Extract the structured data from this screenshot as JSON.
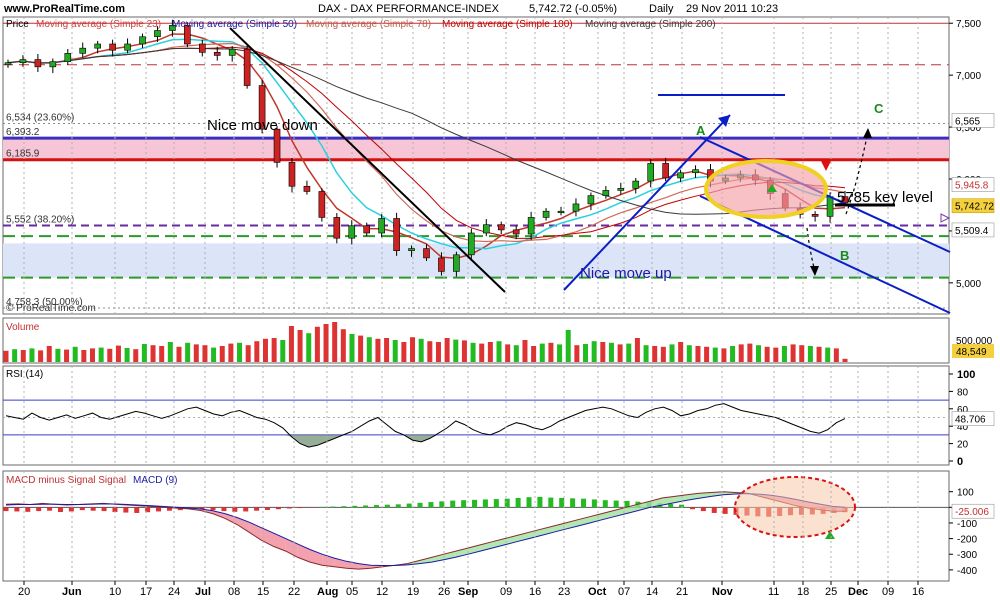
{
  "header": {
    "site": "www.ProRealTime.com",
    "symbol": "DAX - DAX PERFORMANCE-INDEX",
    "quote": "5,742.72 (-0.05%)",
    "period": "Daily",
    "datetime": "29 Nov 2011 10:23"
  },
  "legend": {
    "price": "Price",
    "ma23": "Moving average (Simple 23)",
    "ma50": "Moving average (Simple 50)",
    "ma78": "Moving average (Simple 78)",
    "ma100": "Moving average (Simple 100)",
    "ma200": "Moving average (Simple 200)"
  },
  "watermark": "© ProRealTime.com",
  "colors": {
    "ma23": "#c0392b",
    "ma50": "#1a1aa6",
    "ma78": "#c06050",
    "ma100": "#c00000",
    "ma200": "#3a3a3a",
    "up_candle": "#22aa22",
    "down_candle": "#cc2222",
    "rsi_line": "#000000",
    "macd_hist_up": "#22bb22",
    "macd_hist_down": "#dd3333",
    "pink_band": "#f6c6d6",
    "blue_band": "#dce4f8",
    "trend_line": "#0a1ec8",
    "key_level_line": "#000000"
  },
  "chart_data": {
    "type": "candlestick",
    "x_axis_labels": [
      "20",
      "Jun",
      "10",
      "17",
      "24",
      "Jul",
      "08",
      "15",
      "22",
      "Aug",
      "05",
      "12",
      "19",
      "26",
      "Sep",
      "09",
      "16",
      "23",
      "Oct",
      "07",
      "14",
      "21",
      "Nov",
      "11",
      "18",
      "25",
      "Dec",
      "09",
      "16"
    ],
    "price_axis": {
      "ticks": [
        5000,
        5500,
        6000,
        6500,
        7000,
        7500
      ],
      "labels": [
        "5,000",
        "5,500",
        "6,000",
        "6,500",
        "7,000",
        "7,500"
      ],
      "range": [
        4700,
        7560
      ]
    },
    "price_series_close": [
      7120,
      7150,
      7080,
      7130,
      7210,
      7260,
      7300,
      7240,
      7300,
      7370,
      7430,
      7480,
      7300,
      7220,
      7190,
      7250,
      6900,
      6480,
      6160,
      5930,
      5880,
      5630,
      5430,
      5550,
      5480,
      5620,
      5310,
      5330,
      5240,
      5110,
      5270,
      5480,
      5560,
      5510,
      5470,
      5630,
      5690,
      5690,
      5760,
      5840,
      5890,
      5910,
      5980,
      6150,
      6010,
      6060,
      6090,
      5980,
      6010,
      6040,
      5990,
      5860,
      5720,
      5660,
      5640,
      5830,
      5770
    ],
    "ohlc_note": "approximate daily candles; latest 5742.72",
    "levels": [
      {
        "label": "6,534 (23.60%)",
        "value": 6534
      },
      {
        "label": "6,393.2",
        "value": 6393.2
      },
      {
        "label": "6,185.9",
        "value": 6185.9
      },
      {
        "label": "5,552 (38.20%)",
        "value": 5552
      },
      {
        "label": "4,758.3 (50.00%)",
        "value": 4758.3
      }
    ],
    "right_labels": [
      {
        "text": "6,565",
        "value": 6565
      },
      {
        "text": "5,945.8",
        "value": 5945.8
      },
      {
        "text": "5,742.72",
        "value": 5742.72
      },
      {
        "text": "5,509.4",
        "value": 5509.4
      }
    ],
    "annotations": [
      {
        "text": "Nice move down"
      },
      {
        "text": "Nice move up"
      },
      {
        "text": "5785 key level",
        "value": 5785
      },
      {
        "text": "A"
      },
      {
        "text": "B"
      },
      {
        "text": "C"
      }
    ],
    "volume": {
      "title": "Volume",
      "axis_label": "500,000",
      "last_value": "48,549",
      "bars": [
        0.28,
        0.32,
        0.3,
        0.34,
        0.29,
        0.4,
        0.33,
        0.31,
        0.38,
        0.3,
        0.34,
        0.36,
        0.33,
        0.41,
        0.35,
        0.32,
        0.45,
        0.42,
        0.4,
        0.5,
        0.38,
        0.48,
        0.44,
        0.42,
        0.36,
        0.4,
        0.46,
        0.48,
        0.42,
        0.52,
        0.58,
        0.6,
        0.55,
        0.9,
        0.8,
        0.72,
        0.88,
        0.95,
        1.0,
        0.82,
        0.7,
        0.66,
        0.62,
        0.58,
        0.6,
        0.55,
        0.5,
        0.62,
        0.58,
        0.52,
        0.5,
        0.6,
        0.56,
        0.54,
        0.48,
        0.46,
        0.5,
        0.52,
        0.44,
        0.42,
        0.55,
        0.4,
        0.46,
        0.48,
        0.44,
        0.8,
        0.42,
        0.45,
        0.52,
        0.5,
        0.48,
        0.44,
        0.46,
        0.6,
        0.42,
        0.4,
        0.38,
        0.44,
        0.5,
        0.42,
        0.4,
        0.38,
        0.36,
        0.34,
        0.4,
        0.44,
        0.46,
        0.42,
        0.38,
        0.36,
        0.4,
        0.44,
        0.42,
        0.4,
        0.38,
        0.36,
        0.34,
        0.08
      ],
      "down_mask": [
        1,
        0,
        1,
        0,
        1,
        1,
        0,
        1,
        0,
        1,
        1,
        0,
        1,
        1,
        0,
        1,
        0,
        1,
        1,
        0,
        1,
        0,
        1,
        1,
        0,
        1,
        1,
        0,
        1,
        1,
        1,
        1,
        0,
        1,
        1,
        0,
        1,
        1,
        1,
        1,
        0,
        1,
        0,
        1,
        1,
        0,
        1,
        1,
        0,
        1,
        1,
        1,
        0,
        1,
        0,
        1,
        1,
        0,
        1,
        0,
        1,
        1,
        0,
        1,
        0,
        0,
        1,
        0,
        0,
        1,
        0,
        1,
        0,
        1,
        0,
        1,
        1,
        0,
        1,
        0,
        1,
        1,
        0,
        1,
        0,
        1,
        1,
        0,
        1,
        1,
        0,
        1,
        1,
        0,
        1,
        0,
        1,
        1
      ]
    },
    "rsi": {
      "title": "RSI (14)",
      "ticks": [
        100,
        80,
        60,
        40,
        20,
        0
      ],
      "tick_labels": [
        "100",
        "80",
        "60",
        "40",
        "20",
        "0"
      ],
      "upper": 70,
      "lower": 30,
      "last_value": "48.706",
      "values": [
        52,
        50,
        48,
        55,
        50,
        47,
        50,
        53,
        49,
        52,
        55,
        50,
        48,
        51,
        54,
        57,
        55,
        52,
        49,
        52,
        56,
        60,
        62,
        58,
        54,
        52,
        56,
        58,
        54,
        50,
        48,
        44,
        38,
        28,
        20,
        16,
        18,
        22,
        26,
        30,
        34,
        40,
        46,
        50,
        42,
        34,
        30,
        24,
        22,
        26,
        32,
        38,
        46,
        42,
        36,
        32,
        30,
        34,
        40,
        44,
        42,
        38,
        36,
        40,
        46,
        50,
        54,
        58,
        60,
        62,
        60,
        56,
        52,
        50,
        56,
        60,
        62,
        58,
        52,
        54,
        58,
        60,
        64,
        66,
        62,
        58,
        56,
        54,
        52,
        50,
        46,
        42,
        38,
        34,
        32,
        36,
        44,
        48.7
      ]
    },
    "macd": {
      "title_signal": "MACD minus Signal Signal",
      "title_macd": "MACD (9)",
      "ticks": [
        100,
        0,
        -100,
        -200,
        -300,
        -400
      ],
      "tick_labels": [
        "100",
        "0",
        "-100",
        "-200",
        "-300",
        "-400"
      ],
      "last_value": "-25.006",
      "macd_line": [
        20,
        22,
        18,
        25,
        20,
        15,
        18,
        22,
        25,
        20,
        15,
        10,
        5,
        0,
        -5,
        -10,
        -20,
        -40,
        -70,
        -110,
        -160,
        -210,
        -250,
        -280,
        -320,
        -350,
        -370,
        -380,
        -390,
        -395,
        -390,
        -380,
        -370,
        -360,
        -340,
        -320,
        -300,
        -280,
        -260,
        -240,
        -220,
        -200,
        -180,
        -160,
        -140,
        -120,
        -100,
        -80,
        -60,
        -40,
        -20,
        0,
        20,
        40,
        60,
        70,
        80,
        90,
        95,
        100,
        95,
        90,
        70,
        50,
        30,
        10,
        -5,
        -15,
        -25,
        -25
      ],
      "signal_line": [
        15,
        18,
        18,
        20,
        20,
        18,
        18,
        20,
        22,
        21,
        18,
        14,
        10,
        5,
        0,
        -4,
        -10,
        -22,
        -40,
        -65,
        -95,
        -130,
        -165,
        -200,
        -235,
        -270,
        -300,
        -325,
        -345,
        -360,
        -370,
        -372,
        -372,
        -368,
        -360,
        -350,
        -335,
        -318,
        -300,
        -280,
        -260,
        -240,
        -220,
        -200,
        -180,
        -160,
        -140,
        -120,
        -100,
        -80,
        -60,
        -40,
        -20,
        0,
        15,
        30,
        45,
        58,
        70,
        80,
        85,
        88,
        84,
        76,
        64,
        50,
        34,
        20,
        6,
        0
      ],
      "hist": [
        -20,
        -22,
        -24,
        -20,
        -18,
        -25,
        -22,
        -15,
        -18,
        -20,
        -25,
        -28,
        -30,
        -26,
        -22,
        -18,
        -15,
        -10,
        -12,
        -15,
        -20,
        -24,
        -22,
        -18,
        -14,
        -10,
        -6,
        -4,
        -2,
        2,
        4,
        6,
        8,
        10,
        12,
        14,
        16,
        20,
        24,
        28,
        32,
        36,
        38,
        40,
        42,
        44,
        46,
        50,
        54,
        56,
        52,
        50,
        48,
        46,
        42,
        38,
        36,
        34,
        30,
        26,
        22,
        18,
        14,
        -10,
        -20,
        -30,
        -35,
        -40,
        -44,
        -48,
        -50,
        -46,
        -42,
        -40,
        -38,
        -35,
        -30,
        -26
      ]
    }
  }
}
